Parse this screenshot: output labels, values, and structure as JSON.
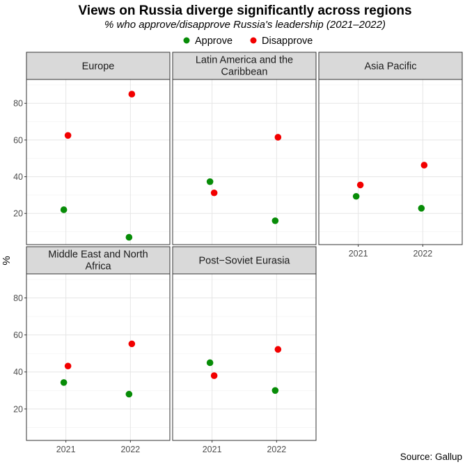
{
  "chart_data": {
    "type": "scatter",
    "title": "Views on Russia diverge significantly across regions",
    "subtitle": "% who approve/disapprove Russia's leadership (2021–2022)",
    "ylabel": "%",
    "xlabel": "",
    "source": "Source: Gallup",
    "categories": [
      "2021",
      "2022"
    ],
    "yticks": [
      20,
      40,
      60,
      80
    ],
    "ylim": [
      3,
      93
    ],
    "grid": true,
    "legend_position": "top",
    "series_styles": [
      {
        "name": "Approve",
        "color": "#078c07"
      },
      {
        "name": "Disapprove",
        "color": "#f20000"
      }
    ],
    "panels": [
      {
        "title_lines": [
          "Europe"
        ],
        "series": [
          {
            "name": "Approve",
            "values": [
              22,
              7
            ]
          },
          {
            "name": "Disapprove",
            "values": [
              62.5,
              85
            ]
          }
        ]
      },
      {
        "title_lines": [
          "Latin America and the",
          "Caribbean"
        ],
        "series": [
          {
            "name": "Approve",
            "values": [
              37.3,
              16
            ]
          },
          {
            "name": "Disapprove",
            "values": [
              31.2,
              61.5
            ]
          }
        ]
      },
      {
        "title_lines": [
          "Asia Pacific"
        ],
        "series": [
          {
            "name": "Approve",
            "values": [
              29.3,
              22.8
            ]
          },
          {
            "name": "Disapprove",
            "values": [
              35.5,
              46.3
            ]
          }
        ]
      },
      {
        "title_lines": [
          "Middle East and North",
          "Africa"
        ],
        "series": [
          {
            "name": "Approve",
            "values": [
              34.3,
              28
            ]
          },
          {
            "name": "Disapprove",
            "values": [
              43.2,
              55.2
            ]
          }
        ]
      },
      {
        "title_lines": [
          "Post−Soviet Eurasia"
        ],
        "series": [
          {
            "name": "Approve",
            "values": [
              45,
              30
            ]
          },
          {
            "name": "Disapprove",
            "values": [
              38,
              52.2
            ]
          }
        ]
      }
    ]
  }
}
